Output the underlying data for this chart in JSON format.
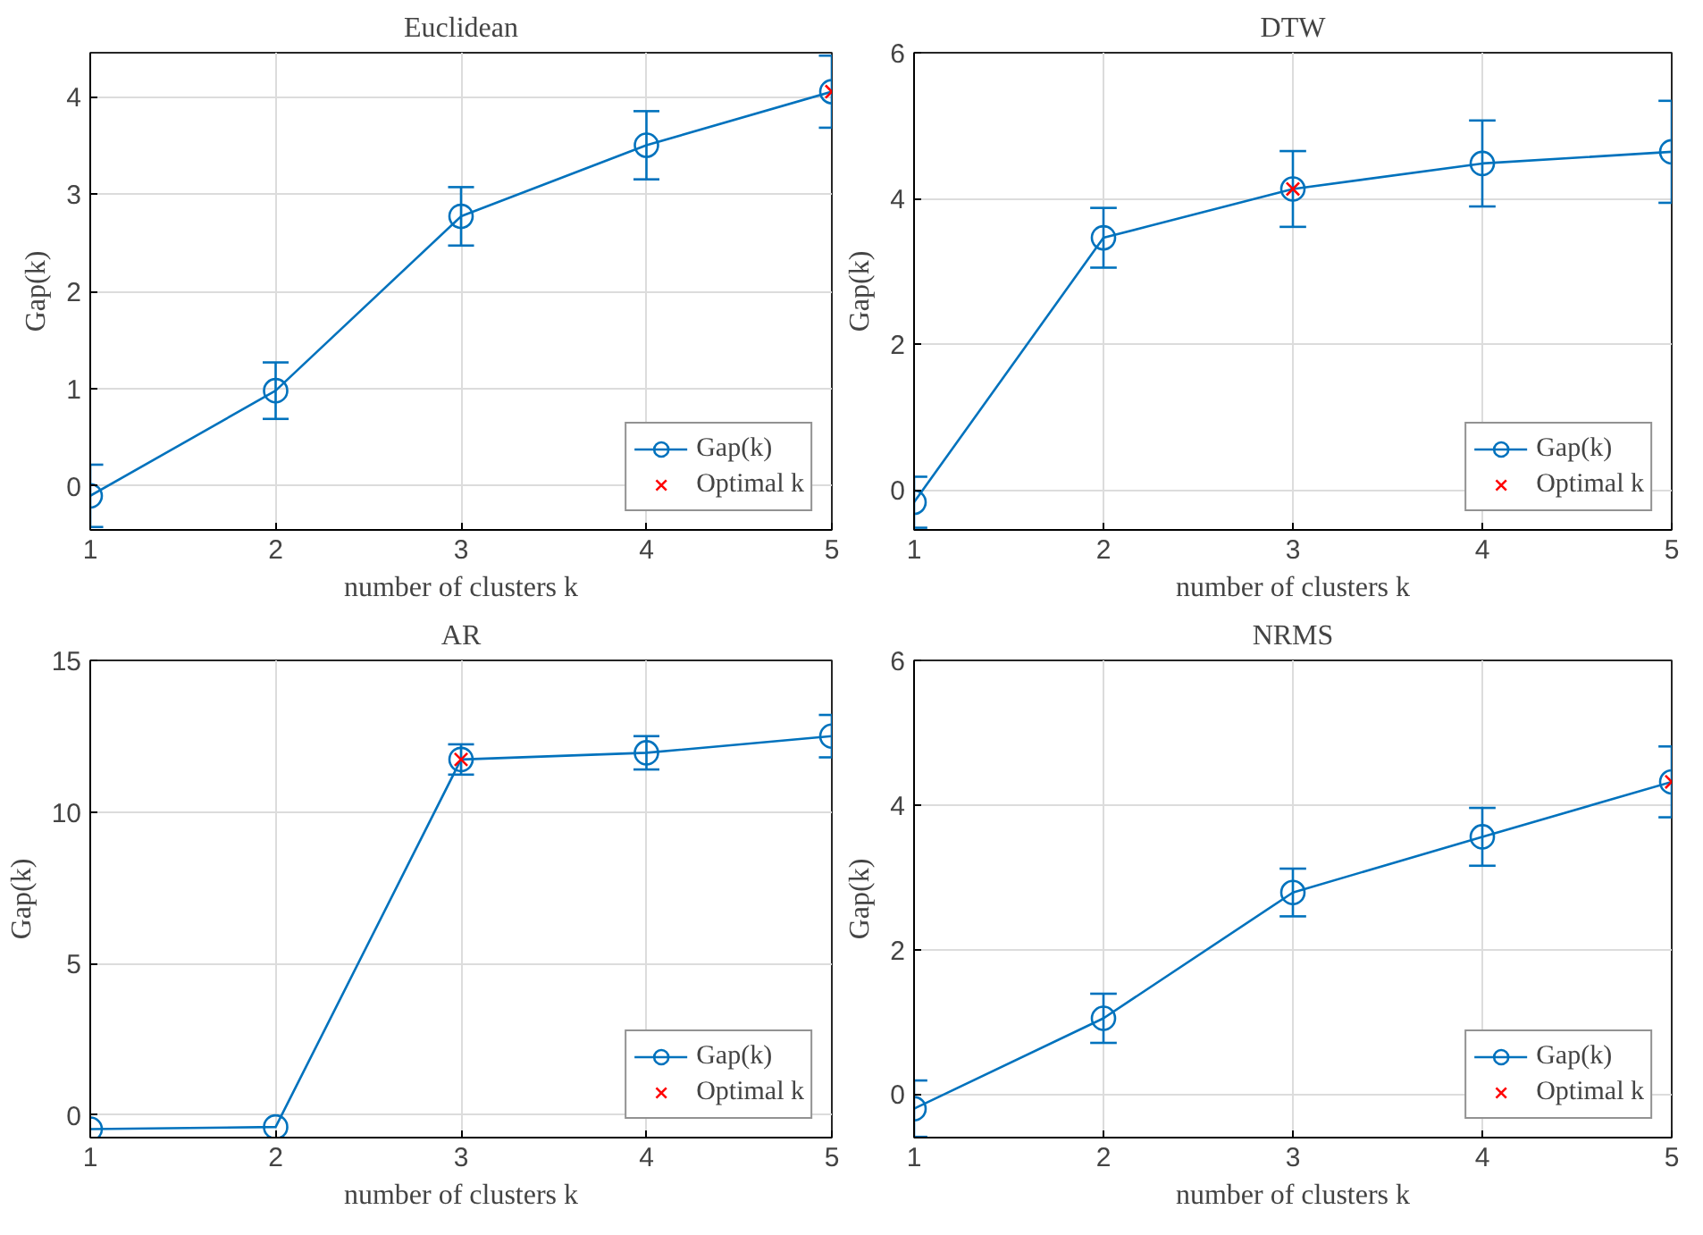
{
  "chart_data": [
    {
      "type": "line",
      "title": "Euclidean",
      "xlabel": "number of clusters k",
      "ylabel": "Gap(k)",
      "xlim": [
        1,
        5
      ],
      "xticks": [
        1,
        2,
        3,
        4,
        5
      ],
      "ylim": [
        -0.45,
        4.45
      ],
      "yticks": [
        0,
        1,
        2,
        3,
        4
      ],
      "grid": true,
      "legend": "bottom right",
      "series": [
        {
          "name": "Gap(k)",
          "color": "#0072bd",
          "marker": "circle",
          "x": [
            1,
            2,
            3,
            4,
            5
          ],
          "values": [
            -0.1,
            0.98,
            2.77,
            3.5,
            4.05
          ],
          "errors": [
            0.32,
            0.29,
            0.3,
            0.35,
            0.37
          ]
        },
        {
          "name": "Optimal k",
          "type": "scatter",
          "color": "#ff0000",
          "marker": "cross",
          "x": [
            5
          ],
          "values": [
            4.05
          ]
        }
      ]
    },
    {
      "type": "line",
      "title": "DTW",
      "xlabel": "number of clusters k",
      "ylabel": "Gap(k)",
      "xlim": [
        1,
        5
      ],
      "xticks": [
        1,
        2,
        3,
        4,
        5
      ],
      "ylim": [
        -0.55,
        6
      ],
      "yticks": [
        0,
        2,
        4,
        6
      ],
      "grid": true,
      "legend": "bottom right",
      "series": [
        {
          "name": "Gap(k)",
          "color": "#0072bd",
          "marker": "circle",
          "x": [
            1,
            2,
            3,
            4,
            5
          ],
          "values": [
            -0.17,
            3.46,
            4.13,
            4.48,
            4.64
          ],
          "errors": [
            0.35,
            0.41,
            0.52,
            0.59,
            0.7
          ]
        },
        {
          "name": "Optimal k",
          "type": "scatter",
          "color": "#ff0000",
          "marker": "cross",
          "x": [
            3
          ],
          "values": [
            4.13
          ]
        }
      ]
    },
    {
      "type": "line",
      "title": "AR",
      "xlabel": "number of clusters k",
      "ylabel": "Gap(k)",
      "xlim": [
        1,
        5
      ],
      "xticks": [
        1,
        2,
        3,
        4,
        5
      ],
      "ylim": [
        -0.75,
        15
      ],
      "yticks": [
        0,
        5,
        10,
        15
      ],
      "grid": true,
      "legend": "bottom right",
      "series": [
        {
          "name": "Gap(k)",
          "color": "#0072bd",
          "marker": "circle",
          "x": [
            1,
            2,
            3,
            4,
            5
          ],
          "values": [
            -0.47,
            -0.4,
            11.73,
            11.95,
            12.5
          ],
          "errors": [
            null,
            null,
            0.5,
            0.55,
            0.7
          ]
        },
        {
          "name": "Optimal k",
          "type": "scatter",
          "color": "#ff0000",
          "marker": "cross",
          "x": [
            3
          ],
          "values": [
            11.73
          ]
        }
      ]
    },
    {
      "type": "line",
      "title": "NRMS",
      "xlabel": "number of clusters k",
      "ylabel": "Gap(k)",
      "xlim": [
        1,
        5
      ],
      "xticks": [
        1,
        2,
        3,
        4,
        5
      ],
      "ylim": [
        -0.6,
        6
      ],
      "yticks": [
        0,
        2,
        4,
        6
      ],
      "grid": true,
      "legend": "bottom right",
      "series": [
        {
          "name": "Gap(k)",
          "color": "#0072bd",
          "marker": "circle",
          "x": [
            1,
            2,
            3,
            4,
            5
          ],
          "values": [
            -0.2,
            1.05,
            2.79,
            3.56,
            4.32
          ],
          "errors": [
            0.39,
            0.34,
            0.33,
            0.4,
            0.49
          ]
        },
        {
          "name": "Optimal k",
          "type": "scatter",
          "color": "#ff0000",
          "marker": "cross",
          "x": [
            5
          ],
          "values": [
            4.32
          ]
        }
      ]
    }
  ]
}
